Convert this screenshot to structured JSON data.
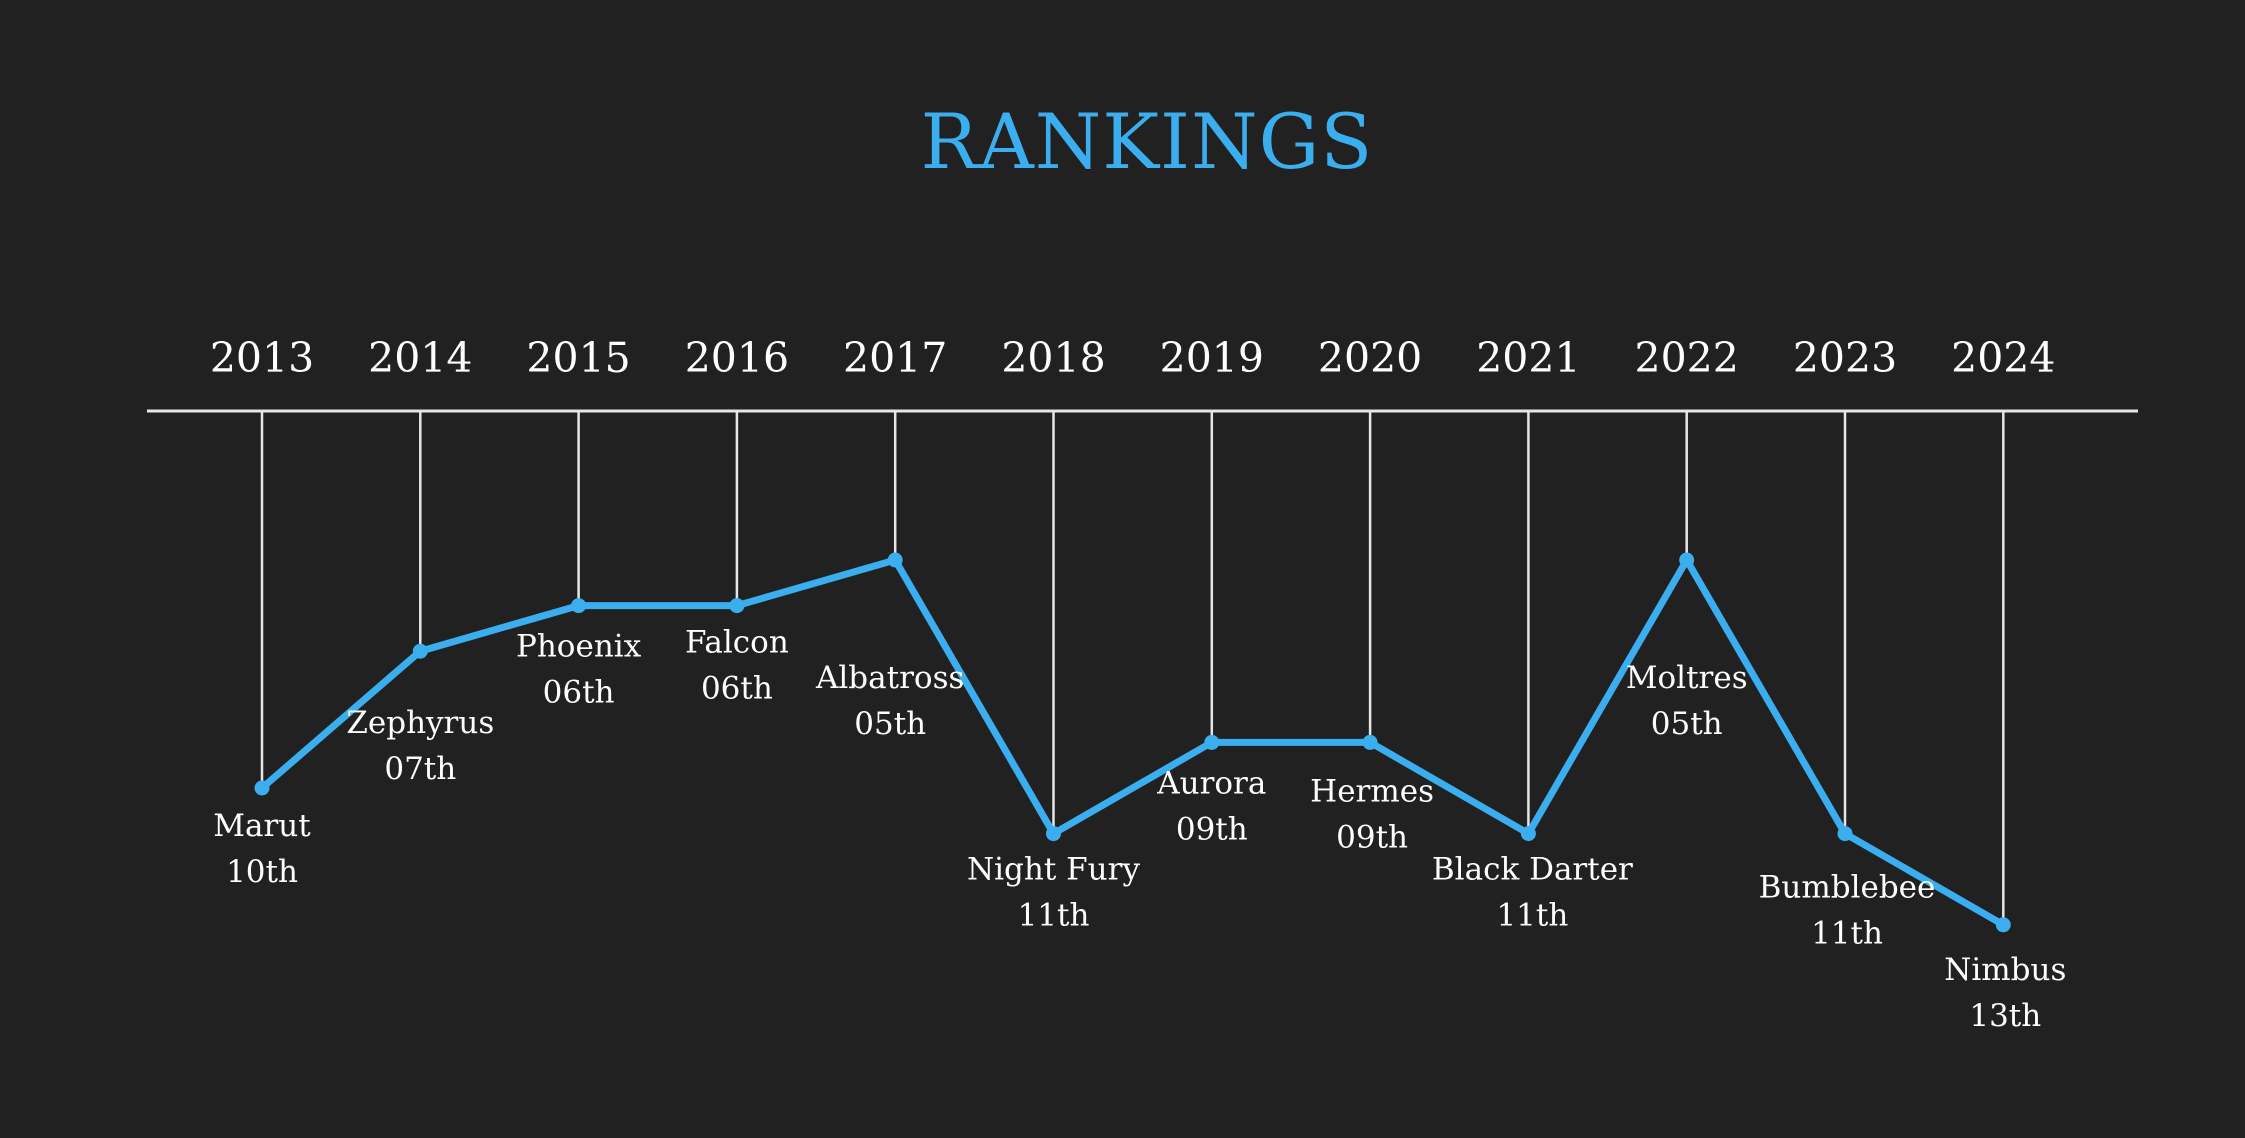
{
  "title": "RANKINGS",
  "colors": {
    "background": "#212121",
    "accent": "#3aaeee",
    "text": "#ffffff",
    "lines": "#e6e6e6"
  },
  "chart_data": {
    "type": "line",
    "title": "RANKINGS",
    "x": [
      "2013",
      "2014",
      "2015",
      "2016",
      "2017",
      "2018",
      "2019",
      "2020",
      "2021",
      "2022",
      "2023",
      "2024"
    ],
    "names": [
      "Marut",
      "Zephyrus",
      "Phoenix",
      "Falcon",
      "Albatross",
      "Night Fury",
      "Aurora",
      "Hermes",
      "Black Darter",
      "Moltres",
      "Bumblebee",
      "Nimbus"
    ],
    "rank_labels": [
      "10th",
      "07th",
      "06th",
      "06th",
      "05th",
      "11th",
      "09th",
      "09th",
      "11th",
      "05th",
      "11th",
      "13th"
    ],
    "values": [
      10,
      7,
      6,
      6,
      5,
      11,
      9,
      9,
      11,
      5,
      11,
      13
    ],
    "y_inverted": true,
    "grid": false,
    "legend": "none"
  }
}
